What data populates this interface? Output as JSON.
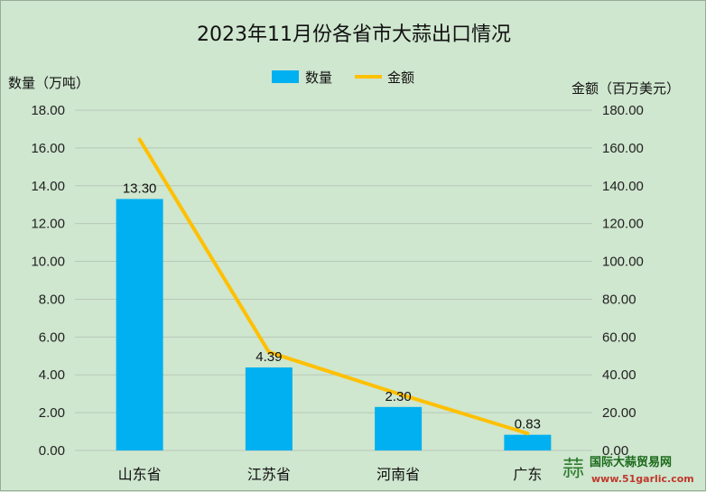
{
  "chart_data": {
    "type": "bar",
    "title": "2023年11月份各省市大蒜出口情况",
    "categories": [
      "山东省",
      "江苏省",
      "河南省",
      "广东"
    ],
    "series": [
      {
        "name": "数量",
        "type": "bar",
        "axis": "left",
        "values": [
          13.3,
          4.39,
          2.3,
          0.83
        ]
      },
      {
        "name": "金额",
        "type": "line",
        "axis": "right",
        "values": [
          164.5,
          52.0,
          30.0,
          9.0
        ]
      }
    ],
    "data_labels": [
      "13.30",
      "4.39",
      "2.30",
      "0.83"
    ],
    "ylabel": "数量（万吨）",
    "y2label": "金额（百万美元）",
    "ylim": [
      0,
      18
    ],
    "y2lim": [
      0,
      180
    ],
    "yticks": [
      "0.00",
      "2.00",
      "4.00",
      "6.00",
      "8.00",
      "10.00",
      "12.00",
      "14.00",
      "16.00",
      "18.00"
    ],
    "y2ticks": [
      "0.00",
      "20.00",
      "40.00",
      "60.00",
      "80.00",
      "100.00",
      "120.00",
      "140.00",
      "160.00",
      "180.00"
    ],
    "grid": true,
    "legend": "top-center",
    "colors": {
      "bar": "#00b0f0",
      "line": "#ffc000",
      "background": "#cfe6cf",
      "grid": "#b8c8b8"
    }
  },
  "watermark": {
    "logo_glyph": "蒜",
    "name": "国际大蒜贸易网",
    "url": "www.51garlic.com"
  }
}
